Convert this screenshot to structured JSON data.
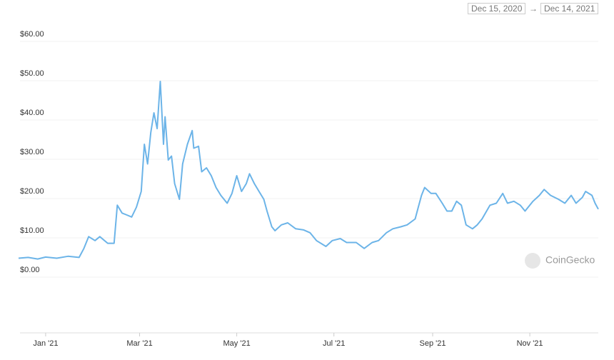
{
  "chart_data": {
    "type": "line",
    "date_range": {
      "from": "Dec 15, 2020",
      "separator": "→",
      "to": "Dec 14, 2021"
    },
    "watermark": "CoinGecko",
    "xlim": [
      "2020-12-15",
      "2021-12-14"
    ],
    "xticks": [
      {
        "value": "2021-01",
        "label": "Jan '21"
      },
      {
        "value": "2021-03",
        "label": "Mar '21"
      },
      {
        "value": "2021-05",
        "label": "May '21"
      },
      {
        "value": "2021-07",
        "label": "Jul '21"
      },
      {
        "value": "2021-09",
        "label": "Sep '21"
      },
      {
        "value": "2021-11",
        "label": "Nov '21"
      }
    ],
    "ylim": [
      0,
      60
    ],
    "yticks": [
      {
        "value": 0,
        "label": "$0.00"
      },
      {
        "value": 10,
        "label": "$10.00"
      },
      {
        "value": 20,
        "label": "$20.00"
      },
      {
        "value": 30,
        "label": "$30.00"
      },
      {
        "value": 40,
        "label": "$40.00"
      },
      {
        "value": 50,
        "label": "$50.00"
      },
      {
        "value": 60,
        "label": "$60.00"
      }
    ],
    "grid": true,
    "color": "#6cb4e8",
    "x": [
      "2020-12-15",
      "2020-12-21",
      "2020-12-27",
      "2021-01-01",
      "2021-01-08",
      "2021-01-15",
      "2021-01-22",
      "2021-01-25",
      "2021-01-28",
      "2021-02-01",
      "2021-02-04",
      "2021-02-09",
      "2021-02-13",
      "2021-02-15",
      "2021-02-18",
      "2021-02-21",
      "2021-02-24",
      "2021-02-27",
      "2021-03-02",
      "2021-03-04",
      "2021-03-06",
      "2021-03-08",
      "2021-03-10",
      "2021-03-12",
      "2021-03-14",
      "2021-03-16",
      "2021-03-17",
      "2021-03-19",
      "2021-03-21",
      "2021-03-23",
      "2021-03-26",
      "2021-03-28",
      "2021-03-31",
      "2021-04-03",
      "2021-04-04",
      "2021-04-07",
      "2021-04-09",
      "2021-04-12",
      "2021-04-15",
      "2021-04-18",
      "2021-04-21",
      "2021-04-25",
      "2021-04-28",
      "2021-05-01",
      "2021-05-04",
      "2021-05-07",
      "2021-05-09",
      "2021-05-12",
      "2021-05-15",
      "2021-05-18",
      "2021-05-20",
      "2021-05-23",
      "2021-05-25",
      "2021-05-29",
      "2021-06-02",
      "2021-06-07",
      "2021-06-12",
      "2021-06-16",
      "2021-06-20",
      "2021-06-26",
      "2021-06-30",
      "2021-07-05",
      "2021-07-09",
      "2021-07-15",
      "2021-07-20",
      "2021-07-25",
      "2021-07-29",
      "2021-08-03",
      "2021-08-07",
      "2021-08-12",
      "2021-08-16",
      "2021-08-21",
      "2021-08-23",
      "2021-08-25",
      "2021-08-27",
      "2021-08-31",
      "2021-09-03",
      "2021-09-07",
      "2021-09-10",
      "2021-09-13",
      "2021-09-16",
      "2021-09-19",
      "2021-09-22",
      "2021-09-26",
      "2021-09-29",
      "2021-10-02",
      "2021-10-07",
      "2021-10-11",
      "2021-10-15",
      "2021-10-18",
      "2021-10-22",
      "2021-10-26",
      "2021-10-29",
      "2021-11-03",
      "2021-11-07",
      "2021-11-10",
      "2021-11-14",
      "2021-11-19",
      "2021-11-23",
      "2021-11-27",
      "2021-11-30",
      "2021-12-04",
      "2021-12-06",
      "2021-12-10",
      "2021-12-12",
      "2021-12-14"
    ],
    "values": [
      3.0,
      3.2,
      2.8,
      3.3,
      3.0,
      3.5,
      3.2,
      5.5,
      8.5,
      7.5,
      8.5,
      6.8,
      6.8,
      16.5,
      14.5,
      14,
      13.5,
      16,
      20,
      32,
      27,
      35,
      40,
      36,
      48,
      32,
      39,
      28,
      29,
      22,
      18,
      27,
      32,
      35.5,
      31,
      31.5,
      25,
      26,
      24,
      21,
      19,
      17,
      19.5,
      24,
      20,
      22,
      24.5,
      22,
      20,
      18,
      15,
      11,
      10,
      11.5,
      12,
      10.5,
      10.2,
      9.5,
      7.5,
      6,
      7.5,
      8,
      7,
      7,
      5.5,
      7,
      7.5,
      9.5,
      10.5,
      11,
      11.5,
      13,
      16,
      19,
      21,
      19.5,
      19.5,
      17,
      15,
      15,
      17.5,
      16.5,
      11.5,
      10.5,
      11.5,
      13,
      16.5,
      17,
      19.5,
      17,
      17.5,
      16.5,
      15,
      17.5,
      19,
      20.5,
      19,
      18,
      17,
      19,
      17,
      18.5,
      20,
      19,
      17,
      15.5
    ]
  }
}
